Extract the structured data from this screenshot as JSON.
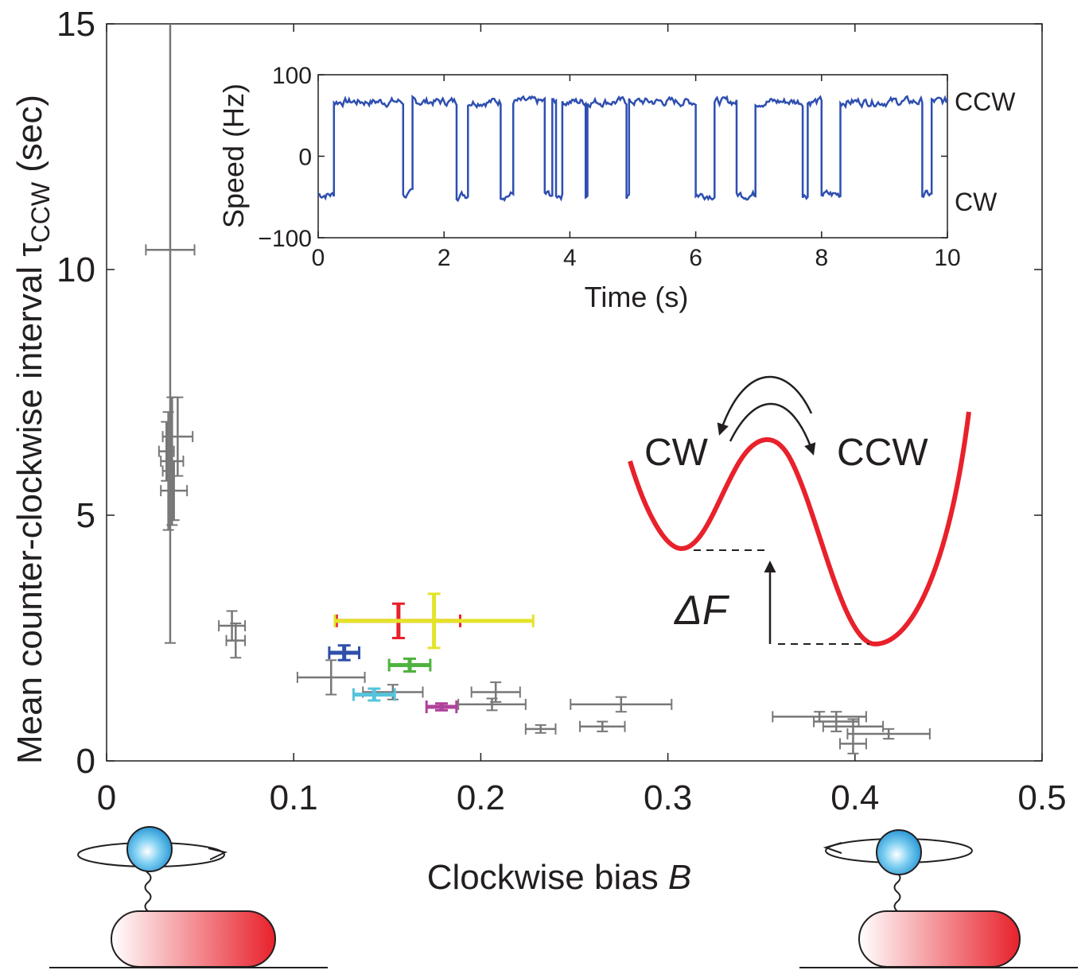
{
  "chart_data": [
    {
      "type": "scatter",
      "subtype": "errorbar",
      "xlabel": "Clockwise bias B",
      "ylabel": "Mean counter-clockwise interval τCCW (sec)",
      "ylabel_parts": {
        "main": "Mean counter-clockwise interval τ",
        "sub": "CCW",
        "unit": " (sec)"
      },
      "xlabel_parts": {
        "main": "Clockwise bias ",
        "var": "B"
      },
      "xlim": [
        0,
        0.5
      ],
      "ylim": [
        0,
        15
      ],
      "xticks": [
        "0",
        "0.1",
        "0.2",
        "0.3",
        "0.4",
        "0.5"
      ],
      "yticks": [
        "0",
        "5",
        "10",
        "15"
      ],
      "grid": false,
      "points": [
        {
          "x": 0.034,
          "y": 10.4,
          "xerr": 0.013,
          "yerr": 8.0,
          "color": "#777777"
        },
        {
          "x": 0.032,
          "y": 6.3,
          "xerr": 0.004,
          "yerr": 0.6,
          "color": "#777777"
        },
        {
          "x": 0.033,
          "y": 5.9,
          "xerr": 0.003,
          "yerr": 1.2,
          "color": "#777777"
        },
        {
          "x": 0.035,
          "y": 6.1,
          "xerr": 0.006,
          "yerr": 1.3,
          "color": "#777777"
        },
        {
          "x": 0.038,
          "y": 6.6,
          "xerr": 0.008,
          "yerr": 0.8,
          "color": "#777777"
        },
        {
          "x": 0.036,
          "y": 5.5,
          "xerr": 0.007,
          "yerr": 0.6,
          "color": "#777777"
        },
        {
          "x": 0.067,
          "y": 2.75,
          "xerr": 0.007,
          "yerr": 0.3,
          "color": "#777777"
        },
        {
          "x": 0.069,
          "y": 2.45,
          "xerr": 0.005,
          "yerr": 0.35,
          "color": "#777777"
        },
        {
          "x": 0.12,
          "y": 1.7,
          "xerr": 0.018,
          "yerr": 0.35,
          "color": "#777777"
        },
        {
          "x": 0.156,
          "y": 2.85,
          "xerr": 0.033,
          "yerr": 0.35,
          "color": "#e8212b"
        },
        {
          "x": 0.175,
          "y": 2.85,
          "xerr": 0.053,
          "yerr": 0.55,
          "color": "#e3e32a"
        },
        {
          "x": 0.127,
          "y": 2.2,
          "xerr": 0.008,
          "yerr": 0.15,
          "color": "#2f4fa8"
        },
        {
          "x": 0.162,
          "y": 1.95,
          "xerr": 0.011,
          "yerr": 0.13,
          "color": "#4fb33f"
        },
        {
          "x": 0.153,
          "y": 1.4,
          "xerr": 0.016,
          "yerr": 0.15,
          "color": "#777777"
        },
        {
          "x": 0.143,
          "y": 1.35,
          "xerr": 0.011,
          "yerr": 0.12,
          "color": "#56c4dc"
        },
        {
          "x": 0.179,
          "y": 1.1,
          "xerr": 0.008,
          "yerr": 0.07,
          "color": "#b0429a"
        },
        {
          "x": 0.208,
          "y": 1.4,
          "xerr": 0.013,
          "yerr": 0.2,
          "color": "#777777"
        },
        {
          "x": 0.206,
          "y": 1.15,
          "xerr": 0.018,
          "yerr": 0.12,
          "color": "#777777"
        },
        {
          "x": 0.232,
          "y": 0.65,
          "xerr": 0.008,
          "yerr": 0.08,
          "color": "#777777"
        },
        {
          "x": 0.265,
          "y": 0.7,
          "xerr": 0.012,
          "yerr": 0.1,
          "color": "#777777"
        },
        {
          "x": 0.275,
          "y": 1.15,
          "xerr": 0.027,
          "yerr": 0.15,
          "color": "#777777"
        },
        {
          "x": 0.381,
          "y": 0.9,
          "xerr": 0.025,
          "yerr": 0.1,
          "color": "#777777"
        },
        {
          "x": 0.39,
          "y": 0.8,
          "xerr": 0.012,
          "yerr": 0.2,
          "color": "#777777"
        },
        {
          "x": 0.399,
          "y": 0.7,
          "xerr": 0.016,
          "yerr": 0.15,
          "color": "#777777"
        },
        {
          "x": 0.399,
          "y": 0.35,
          "xerr": 0.007,
          "yerr": 0.2,
          "color": "#777777"
        },
        {
          "x": 0.418,
          "y": 0.55,
          "xerr": 0.022,
          "yerr": 0.1,
          "color": "#777777"
        }
      ]
    },
    {
      "type": "line",
      "xlabel": "Time (s)",
      "ylabel": "Speed (Hz)",
      "xlim": [
        0,
        10
      ],
      "ylim": [
        -100,
        100
      ],
      "xticks": [
        "0",
        "2",
        "4",
        "6",
        "8",
        "10"
      ],
      "yticks": [
        "100",
        "0",
        "−100"
      ],
      "right_labels": [
        "CCW",
        "CW"
      ],
      "series_color": "#2e4fb0",
      "high_level": 67,
      "low_level": -47,
      "segments": [
        {
          "state": "CW",
          "t0": 0.0,
          "t1": 0.25
        },
        {
          "state": "CCW",
          "t0": 0.25,
          "t1": 1.35
        },
        {
          "state": "CW",
          "t0": 1.35,
          "t1": 1.5
        },
        {
          "state": "CCW",
          "t0": 1.5,
          "t1": 2.2
        },
        {
          "state": "CW",
          "t0": 2.2,
          "t1": 2.38
        },
        {
          "state": "CCW",
          "t0": 2.38,
          "t1": 2.9
        },
        {
          "state": "CW",
          "t0": 2.9,
          "t1": 3.1
        },
        {
          "state": "CCW",
          "t0": 3.1,
          "t1": 3.6
        },
        {
          "state": "CW",
          "t0": 3.6,
          "t1": 3.72
        },
        {
          "state": "CCW",
          "t0": 3.72,
          "t1": 3.78
        },
        {
          "state": "CW",
          "t0": 3.78,
          "t1": 3.88
        },
        {
          "state": "CCW",
          "t0": 3.88,
          "t1": 4.25
        },
        {
          "state": "CW",
          "t0": 4.25,
          "t1": 4.28
        },
        {
          "state": "CCW",
          "t0": 4.28,
          "t1": 4.9
        },
        {
          "state": "CW",
          "t0": 4.9,
          "t1": 4.94
        },
        {
          "state": "CCW",
          "t0": 4.94,
          "t1": 6.0
        },
        {
          "state": "CW",
          "t0": 6.0,
          "t1": 6.3
        },
        {
          "state": "CCW",
          "t0": 6.3,
          "t1": 6.65
        },
        {
          "state": "CW",
          "t0": 6.65,
          "t1": 6.95
        },
        {
          "state": "CCW",
          "t0": 6.95,
          "t1": 7.7
        },
        {
          "state": "CW",
          "t0": 7.7,
          "t1": 7.78
        },
        {
          "state": "CCW",
          "t0": 7.78,
          "t1": 8.0
        },
        {
          "state": "CW",
          "t0": 8.0,
          "t1": 8.3
        },
        {
          "state": "CCW",
          "t0": 8.3,
          "t1": 9.6
        },
        {
          "state": "CW",
          "t0": 9.6,
          "t1": 9.75
        },
        {
          "state": "CCW",
          "t0": 9.75,
          "t1": 10.0
        }
      ]
    }
  ],
  "energy_diagram": {
    "wells": [
      "CW",
      "CCW"
    ],
    "delta_label": "ΔF",
    "curve_color": "#e8212b"
  },
  "illustration": {
    "cell_color_start": "#ffffff",
    "cell_color_end": "#e8212b",
    "bead_color": "#3bb2e8"
  }
}
